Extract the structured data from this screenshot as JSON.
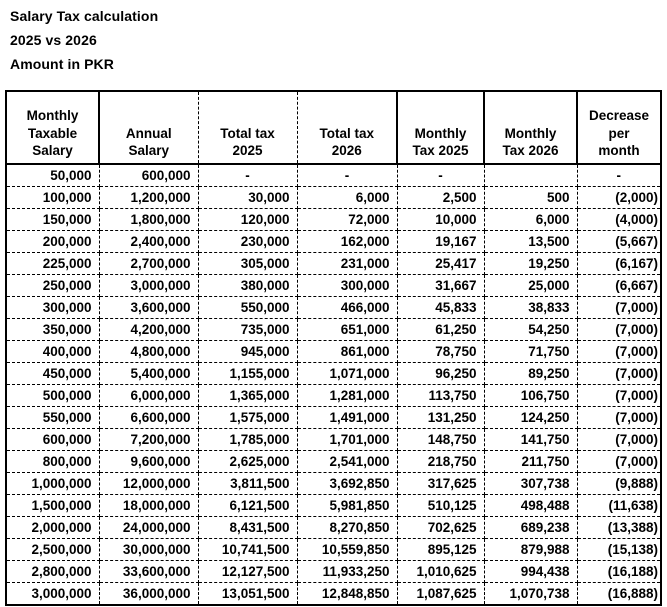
{
  "title": {
    "line1": "Salary Tax calculation",
    "line2": "2025 vs 2026",
    "line3": "Amount in PKR"
  },
  "colors": {
    "text": "#000000",
    "border": "#000000",
    "background": "#ffffff"
  },
  "table": {
    "columns": [
      {
        "id": "monthly-taxable-salary",
        "label": "Monthly\nTaxable\nSalary"
      },
      {
        "id": "annual-salary",
        "label": "Annual\nSalary"
      },
      {
        "id": "total-tax-2025",
        "label": "Total tax\n2025"
      },
      {
        "id": "total-tax-2026",
        "label": "Total tax\n2026"
      },
      {
        "id": "monthly-tax-2025",
        "label": "Monthly\nTax 2025"
      },
      {
        "id": "monthly-tax-2026",
        "label": "Monthly\nTax 2026"
      },
      {
        "id": "decrease-per-month",
        "label": "Decrease\nper\nmonth"
      }
    ],
    "rows": [
      [
        "50,000",
        "600,000",
        "-",
        "-",
        "-",
        "",
        "-"
      ],
      [
        "100,000",
        "1,200,000",
        "30,000",
        "6,000",
        "2,500",
        "500",
        "(2,000)"
      ],
      [
        "150,000",
        "1,800,000",
        "120,000",
        "72,000",
        "10,000",
        "6,000",
        "(4,000)"
      ],
      [
        "200,000",
        "2,400,000",
        "230,000",
        "162,000",
        "19,167",
        "13,500",
        "(5,667)"
      ],
      [
        "225,000",
        "2,700,000",
        "305,000",
        "231,000",
        "25,417",
        "19,250",
        "(6,167)"
      ],
      [
        "250,000",
        "3,000,000",
        "380,000",
        "300,000",
        "31,667",
        "25,000",
        "(6,667)"
      ],
      [
        "300,000",
        "3,600,000",
        "550,000",
        "466,000",
        "45,833",
        "38,833",
        "(7,000)"
      ],
      [
        "350,000",
        "4,200,000",
        "735,000",
        "651,000",
        "61,250",
        "54,250",
        "(7,000)"
      ],
      [
        "400,000",
        "4,800,000",
        "945,000",
        "861,000",
        "78,750",
        "71,750",
        "(7,000)"
      ],
      [
        "450,000",
        "5,400,000",
        "1,155,000",
        "1,071,000",
        "96,250",
        "89,250",
        "(7,000)"
      ],
      [
        "500,000",
        "6,000,000",
        "1,365,000",
        "1,281,000",
        "113,750",
        "106,750",
        "(7,000)"
      ],
      [
        "550,000",
        "6,600,000",
        "1,575,000",
        "1,491,000",
        "131,250",
        "124,250",
        "(7,000)"
      ],
      [
        "600,000",
        "7,200,000",
        "1,785,000",
        "1,701,000",
        "148,750",
        "141,750",
        "(7,000)"
      ],
      [
        "800,000",
        "9,600,000",
        "2,625,000",
        "2,541,000",
        "218,750",
        "211,750",
        "(7,000)"
      ],
      [
        "1,000,000",
        "12,000,000",
        "3,811,500",
        "3,692,850",
        "317,625",
        "307,738",
        "(9,888)"
      ],
      [
        "1,500,000",
        "18,000,000",
        "6,121,500",
        "5,981,850",
        "510,125",
        "498,488",
        "(11,638)"
      ],
      [
        "2,000,000",
        "24,000,000",
        "8,431,500",
        "8,270,850",
        "702,625",
        "689,238",
        "(13,388)"
      ],
      [
        "2,500,000",
        "30,000,000",
        "10,741,500",
        "10,559,850",
        "895,125",
        "879,988",
        "(15,138)"
      ],
      [
        "2,800,000",
        "33,600,000",
        "12,127,500",
        "11,933,250",
        "1,010,625",
        "994,438",
        "(16,188)"
      ],
      [
        "3,000,000",
        "36,000,000",
        "13,051,500",
        "12,848,850",
        "1,087,625",
        "1,070,738",
        "(16,888)"
      ]
    ]
  }
}
